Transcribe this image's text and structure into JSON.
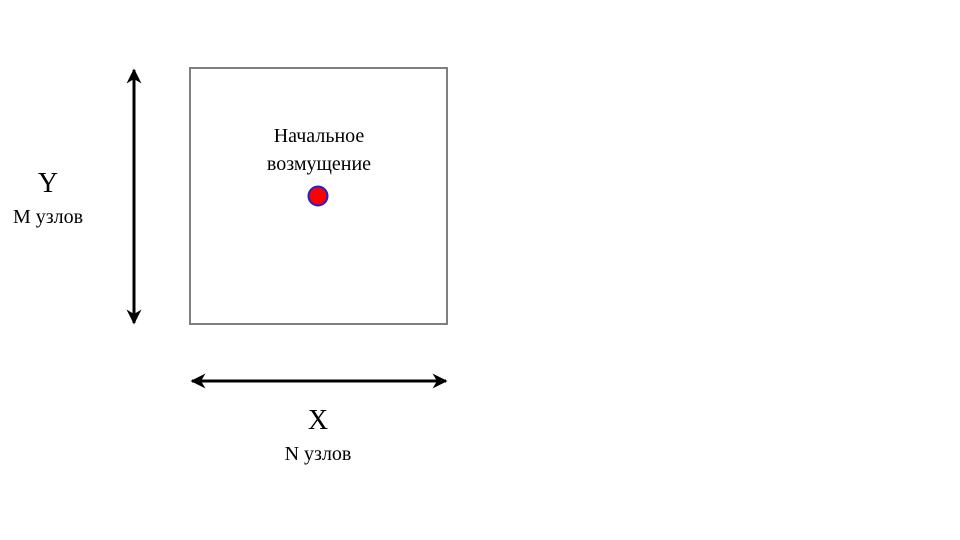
{
  "diagram": {
    "axis_y": {
      "letter": "Y",
      "nodes_label": "M узлов"
    },
    "axis_x": {
      "letter": "X",
      "nodes_label": "N узлов"
    },
    "perturbation": {
      "label_line1": "Начальное",
      "label_line2": "возмущение",
      "fill_color": "#ff0000",
      "stroke_color": "#2222cc"
    },
    "colors": {
      "domain_border": "#7f7f7f",
      "arrows": "#000000"
    }
  }
}
